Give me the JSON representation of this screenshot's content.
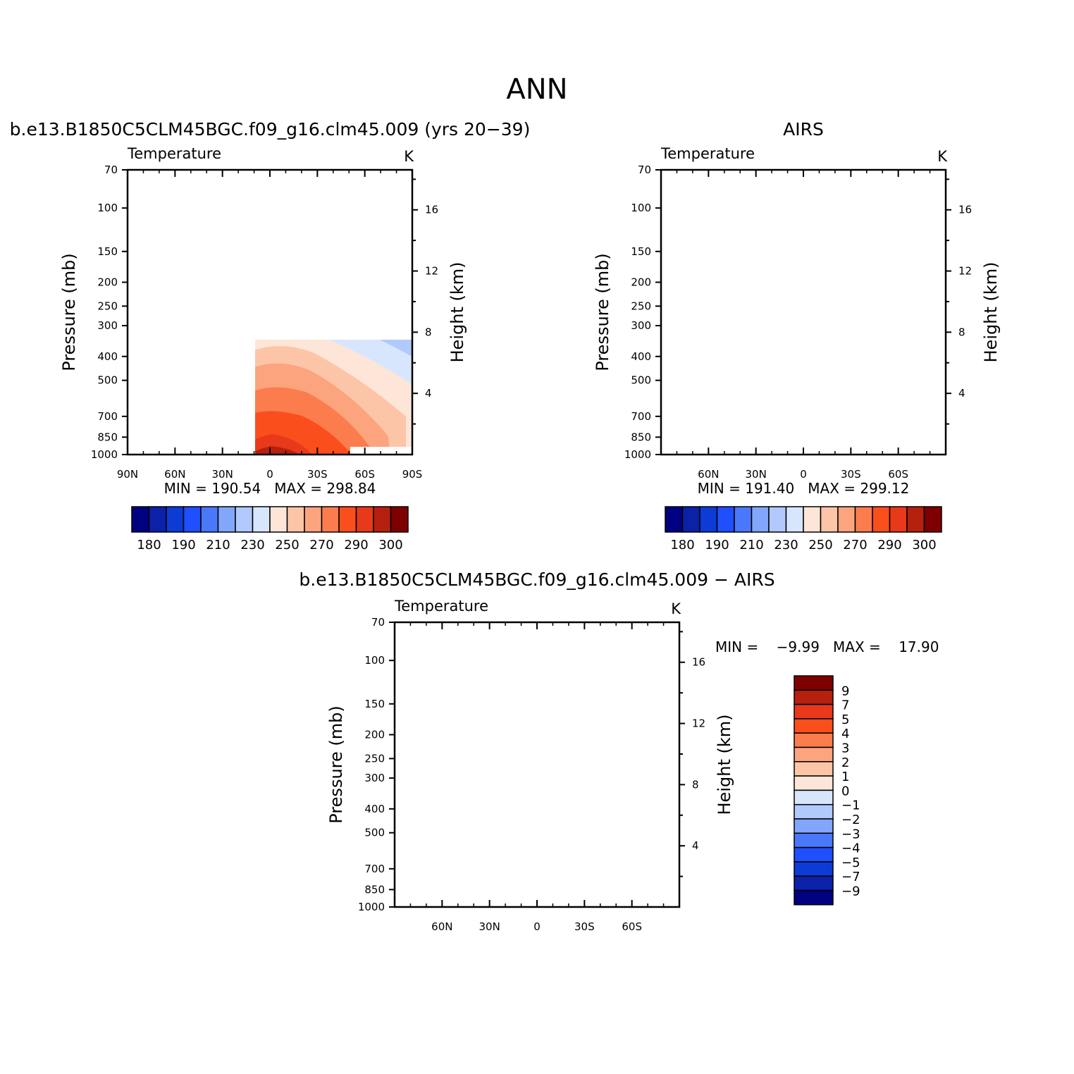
{
  "main_title": "ANN",
  "panels": [
    {
      "id": "model",
      "heading": "b.e13.B1850C5CLM45BGC.f09_g16.clm45.009 (yrs 20−39)",
      "left_string": "Temperature",
      "right_string": "K",
      "y_axis_label": "Pressure (mb)",
      "right_axis_label": "Height (km)",
      "stats": "MIN = 190.54   MAX = 298.84"
    },
    {
      "id": "obs",
      "heading": "AIRS",
      "left_string": "Temperature",
      "right_string": "K",
      "y_axis_label": "Pressure (mb)",
      "right_axis_label": "Height (km)",
      "stats": "MIN = 191.40   MAX = 299.12"
    },
    {
      "id": "diff",
      "heading": "b.e13.B1850C5CLM45BGC.f09_g16.clm45.009 − AIRS",
      "left_string": "Temperature",
      "right_string": "K",
      "y_axis_label": "Pressure (mb)",
      "right_axis_label": "Height (km)",
      "stats": "MIN =    −9.99   MAX =    17.90"
    }
  ],
  "chart_data": [
    {
      "type": "heatmap",
      "title": "Temperature",
      "units": "K",
      "xlabel": "",
      "ylabel": "Pressure (mb)",
      "y2label": "Height (km)",
      "x_ticks": [
        "90N",
        "60N",
        "30N",
        "0",
        "30S",
        "60S",
        "90S"
      ],
      "x_tick_values": [
        90,
        60,
        30,
        0,
        -30,
        -60,
        -90
      ],
      "y_ticks": [
        70,
        100,
        150,
        200,
        250,
        300,
        400,
        500,
        700,
        850,
        1000
      ],
      "y_scale": "log",
      "y2_ticks": [
        16,
        12,
        8,
        4
      ],
      "levels": [
        180,
        185,
        190,
        200,
        210,
        220,
        230,
        240,
        250,
        260,
        270,
        280,
        290,
        295,
        300
      ],
      "colorbar_labels": [
        "180",
        "190",
        "210",
        "230",
        "250",
        "270",
        "290",
        "300"
      ],
      "min": 190.54,
      "max": 298.84
    },
    {
      "type": "heatmap",
      "title": "Temperature",
      "units": "K",
      "xlabel": "",
      "ylabel": "Pressure (mb)",
      "y2label": "Height (km)",
      "x_ticks": [
        "60N",
        "30N",
        "0",
        "30S",
        "60S"
      ],
      "x_tick_values": [
        60,
        30,
        0,
        -30,
        -60
      ],
      "y_ticks": [
        70,
        100,
        150,
        200,
        250,
        300,
        400,
        500,
        700,
        850,
        1000
      ],
      "y_scale": "log",
      "y2_ticks": [
        16,
        12,
        8,
        4
      ],
      "levels": [
        180,
        185,
        190,
        200,
        210,
        220,
        230,
        240,
        250,
        260,
        270,
        280,
        290,
        295,
        300
      ],
      "colorbar_labels": [
        "180",
        "190",
        "210",
        "230",
        "250",
        "270",
        "290",
        "300"
      ],
      "min": 191.4,
      "max": 299.12
    },
    {
      "type": "heatmap",
      "title": "Temperature",
      "units": "K",
      "xlabel": "",
      "ylabel": "Pressure (mb)",
      "y2label": "Height (km)",
      "x_ticks": [
        "60N",
        "30N",
        "0",
        "30S",
        "60S"
      ],
      "x_tick_values": [
        60,
        30,
        0,
        -30,
        -60
      ],
      "y_ticks": [
        70,
        100,
        150,
        200,
        250,
        300,
        400,
        500,
        700,
        850,
        1000
      ],
      "y_scale": "log",
      "y2_ticks": [
        16,
        12,
        8,
        4
      ],
      "levels": [
        -9,
        -7,
        -5,
        -4,
        -3,
        -2,
        -1,
        0,
        1,
        2,
        3,
        4,
        5,
        7,
        9
      ],
      "colorbar_labels": [
        "9",
        "7",
        "5",
        "4",
        "3",
        "2",
        "1",
        "0",
        "−1",
        "−2",
        "−3",
        "−4",
        "−5",
        "−7",
        "−9"
      ],
      "min": -9.99,
      "max": 17.9
    }
  ],
  "colormap": [
    "#000080",
    "#0a21a8",
    "#0d3bd6",
    "#1f4fff",
    "#4a78fa",
    "#82a6fb",
    "#b1c9fc",
    "#d8e6fd",
    "#fde6d8",
    "#fcc5a8",
    "#fba47e",
    "#fb7d4d",
    "#fb4e1d",
    "#e8391a",
    "#b5200f",
    "#7f0000"
  ]
}
